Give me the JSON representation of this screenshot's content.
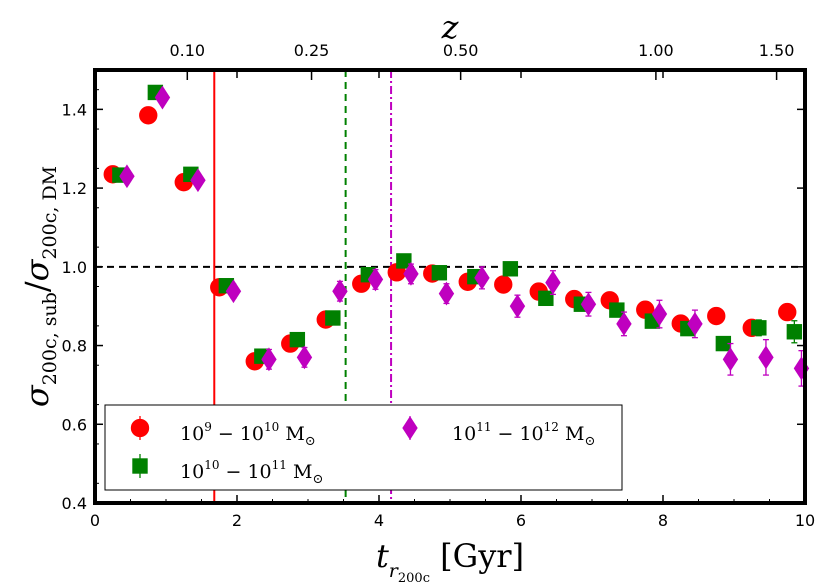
{
  "chart_data": {
    "type": "scatter",
    "xlabel": "t_{r200c} [Gyr]",
    "ylabel": "σ_{200c,sub} / σ_{200c,DM}",
    "top_axis_label": "z",
    "top_ticks": [
      {
        "t": 1.3,
        "label": "0.10"
      },
      {
        "t": 3.05,
        "label": "0.25"
      },
      {
        "t": 5.15,
        "label": "0.50"
      },
      {
        "t": 7.9,
        "label": "1.00"
      },
      {
        "t": 9.6,
        "label": "1.50"
      }
    ],
    "xlim": [
      0,
      10
    ],
    "ylim": [
      0.4,
      1.5
    ],
    "xticks": [
      "0",
      "2",
      "4",
      "6",
      "8",
      "10"
    ],
    "yticks": [
      "0.4",
      "0.6",
      "0.8",
      "1.0",
      "1.2",
      "1.4"
    ],
    "reference_line": {
      "y": 1.0,
      "style": "dashed",
      "color": "#000000"
    },
    "vertical_lines": [
      {
        "x": 1.68,
        "color": "#ff0000",
        "style": "solid"
      },
      {
        "x": 3.53,
        "color": "#008000",
        "style": "dashed"
      },
      {
        "x": 4.17,
        "color": "#bf00bf",
        "style": "dashdot"
      }
    ],
    "legend_position": "lower-left",
    "series": [
      {
        "name": "10^9 − 10^10 M☉",
        "legend_base": [
          "10",
          "9",
          "10",
          "10"
        ],
        "color": "#ff0000",
        "marker": "circle",
        "points": [
          {
            "x": 0.25,
            "y": 1.235,
            "err": 0.006
          },
          {
            "x": 0.75,
            "y": 1.385,
            "err": 0.006
          },
          {
            "x": 1.25,
            "y": 1.215,
            "err": 0.006
          },
          {
            "x": 1.75,
            "y": 0.948,
            "err": 0.006
          },
          {
            "x": 2.25,
            "y": 0.76,
            "err": 0.006
          },
          {
            "x": 2.75,
            "y": 0.805,
            "err": 0.006
          },
          {
            "x": 3.25,
            "y": 0.866,
            "err": 0.006
          },
          {
            "x": 3.75,
            "y": 0.957,
            "err": 0.006
          },
          {
            "x": 4.25,
            "y": 0.986,
            "err": 0.006
          },
          {
            "x": 4.75,
            "y": 0.983,
            "err": 0.006
          },
          {
            "x": 5.25,
            "y": 0.962,
            "err": 0.006
          },
          {
            "x": 5.75,
            "y": 0.955,
            "err": 0.006
          },
          {
            "x": 6.25,
            "y": 0.937,
            "err": 0.006
          },
          {
            "x": 6.75,
            "y": 0.918,
            "err": 0.008
          },
          {
            "x": 7.25,
            "y": 0.915,
            "err": 0.008
          },
          {
            "x": 7.75,
            "y": 0.891,
            "err": 0.008
          },
          {
            "x": 8.25,
            "y": 0.856,
            "err": 0.008
          },
          {
            "x": 8.75,
            "y": 0.875,
            "err": 0.008
          },
          {
            "x": 9.25,
            "y": 0.845,
            "err": 0.014
          },
          {
            "x": 9.75,
            "y": 0.885,
            "err": 0.02
          }
        ]
      },
      {
        "name": "10^10 − 10^11 M☉",
        "legend_base": [
          "10",
          "10",
          "10",
          "11"
        ],
        "color": "#008000",
        "marker": "square",
        "points": [
          {
            "x": 0.35,
            "y": 1.233,
            "err": 0.006
          },
          {
            "x": 0.85,
            "y": 1.443,
            "err": 0.006
          },
          {
            "x": 1.35,
            "y": 1.235,
            "err": 0.006
          },
          {
            "x": 1.85,
            "y": 0.952,
            "err": 0.006
          },
          {
            "x": 2.35,
            "y": 0.773,
            "err": 0.006
          },
          {
            "x": 2.85,
            "y": 0.815,
            "err": 0.006
          },
          {
            "x": 3.35,
            "y": 0.87,
            "err": 0.006
          },
          {
            "x": 3.85,
            "y": 0.98,
            "err": 0.006
          },
          {
            "x": 4.35,
            "y": 1.015,
            "err": 0.006
          },
          {
            "x": 4.85,
            "y": 0.985,
            "err": 0.006
          },
          {
            "x": 5.35,
            "y": 0.975,
            "err": 0.006
          },
          {
            "x": 5.85,
            "y": 0.995,
            "err": 0.008
          },
          {
            "x": 6.35,
            "y": 0.92,
            "err": 0.008
          },
          {
            "x": 6.85,
            "y": 0.905,
            "err": 0.01
          },
          {
            "x": 7.35,
            "y": 0.89,
            "err": 0.01
          },
          {
            "x": 7.85,
            "y": 0.862,
            "err": 0.01
          },
          {
            "x": 8.35,
            "y": 0.843,
            "err": 0.012
          },
          {
            "x": 8.85,
            "y": 0.805,
            "err": 0.015
          },
          {
            "x": 9.35,
            "y": 0.845,
            "err": 0.02
          },
          {
            "x": 9.85,
            "y": 0.835,
            "err": 0.028
          }
        ]
      },
      {
        "name": "10^11 − 10^12 M☉",
        "legend_base": [
          "10",
          "11",
          "10",
          "12"
        ],
        "color": "#bf00bf",
        "marker": "diamond",
        "points": [
          {
            "x": 0.45,
            "y": 1.23,
            "err": 0.012
          },
          {
            "x": 0.95,
            "y": 1.43,
            "err": 0.015
          },
          {
            "x": 1.45,
            "y": 1.22,
            "err": 0.015
          },
          {
            "x": 1.95,
            "y": 0.938,
            "err": 0.018
          },
          {
            "x": 2.45,
            "y": 0.765,
            "err": 0.025
          },
          {
            "x": 2.95,
            "y": 0.77,
            "err": 0.025
          },
          {
            "x": 3.45,
            "y": 0.938,
            "err": 0.025
          },
          {
            "x": 3.95,
            "y": 0.968,
            "err": 0.025
          },
          {
            "x": 4.45,
            "y": 0.982,
            "err": 0.025
          },
          {
            "x": 4.95,
            "y": 0.932,
            "err": 0.025
          },
          {
            "x": 5.45,
            "y": 0.972,
            "err": 0.028
          },
          {
            "x": 5.95,
            "y": 0.9,
            "err": 0.028
          },
          {
            "x": 6.45,
            "y": 0.96,
            "err": 0.03
          },
          {
            "x": 6.95,
            "y": 0.905,
            "err": 0.03
          },
          {
            "x": 7.45,
            "y": 0.855,
            "err": 0.03
          },
          {
            "x": 7.95,
            "y": 0.88,
            "err": 0.035
          },
          {
            "x": 8.45,
            "y": 0.855,
            "err": 0.035
          },
          {
            "x": 8.95,
            "y": 0.765,
            "err": 0.04
          },
          {
            "x": 9.45,
            "y": 0.77,
            "err": 0.045
          },
          {
            "x": 9.95,
            "y": 0.742,
            "err": 0.045
          }
        ]
      }
    ]
  }
}
